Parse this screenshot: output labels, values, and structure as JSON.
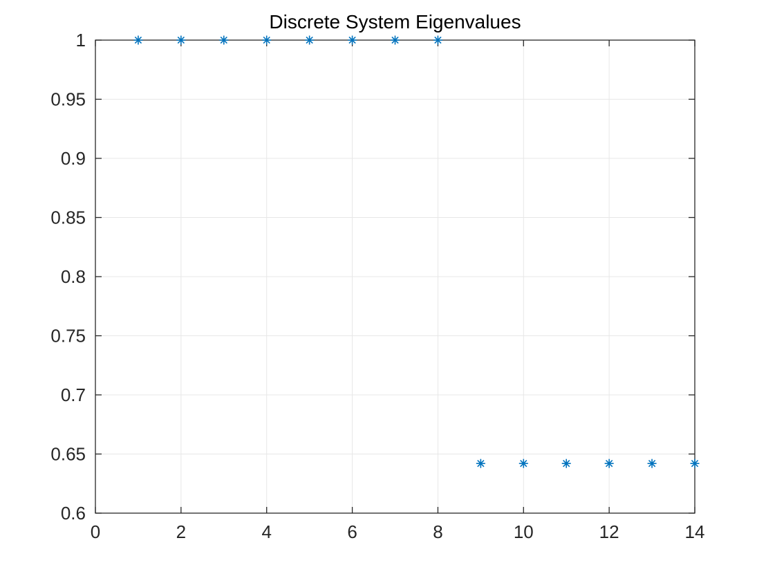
{
  "figure": {
    "background": "#ffffff"
  },
  "chart_data": {
    "type": "scatter",
    "title": "Discrete System Eigenvalues",
    "xlabel": "",
    "ylabel": "",
    "xlim": [
      0,
      14
    ],
    "ylim": [
      0.6,
      1.0
    ],
    "grid": true,
    "legend": "none",
    "marker_style": "asterisk",
    "marker_color": "#0072BD",
    "axis_color": "#262626",
    "grid_color": "#e7e7e7",
    "tick_label_color": "#262626",
    "title_color": "#000000",
    "series": [
      {
        "name": "eigenvalues",
        "x": [
          1,
          2,
          3,
          4,
          5,
          6,
          7,
          8,
          9,
          10,
          11,
          12,
          13,
          14
        ],
        "y": [
          1.0,
          1.0,
          1.0,
          1.0,
          1.0,
          1.0,
          1.0,
          1.0,
          0.642,
          0.642,
          0.642,
          0.642,
          0.642,
          0.642
        ]
      }
    ],
    "xticks": [
      {
        "v": 0,
        "label": "0"
      },
      {
        "v": 2,
        "label": "2"
      },
      {
        "v": 4,
        "label": "4"
      },
      {
        "v": 6,
        "label": "6"
      },
      {
        "v": 8,
        "label": "8"
      },
      {
        "v": 10,
        "label": "10"
      },
      {
        "v": 12,
        "label": "12"
      },
      {
        "v": 14,
        "label": "14"
      }
    ],
    "yticks": [
      {
        "v": 0.6,
        "label": "0.6"
      },
      {
        "v": 0.65,
        "label": "0.65"
      },
      {
        "v": 0.7,
        "label": "0.7"
      },
      {
        "v": 0.75,
        "label": "0.75"
      },
      {
        "v": 0.8,
        "label": "0.8"
      },
      {
        "v": 0.85,
        "label": "0.85"
      },
      {
        "v": 0.9,
        "label": "0.9"
      },
      {
        "v": 0.95,
        "label": "0.95"
      },
      {
        "v": 1.0,
        "label": "1"
      }
    ]
  }
}
